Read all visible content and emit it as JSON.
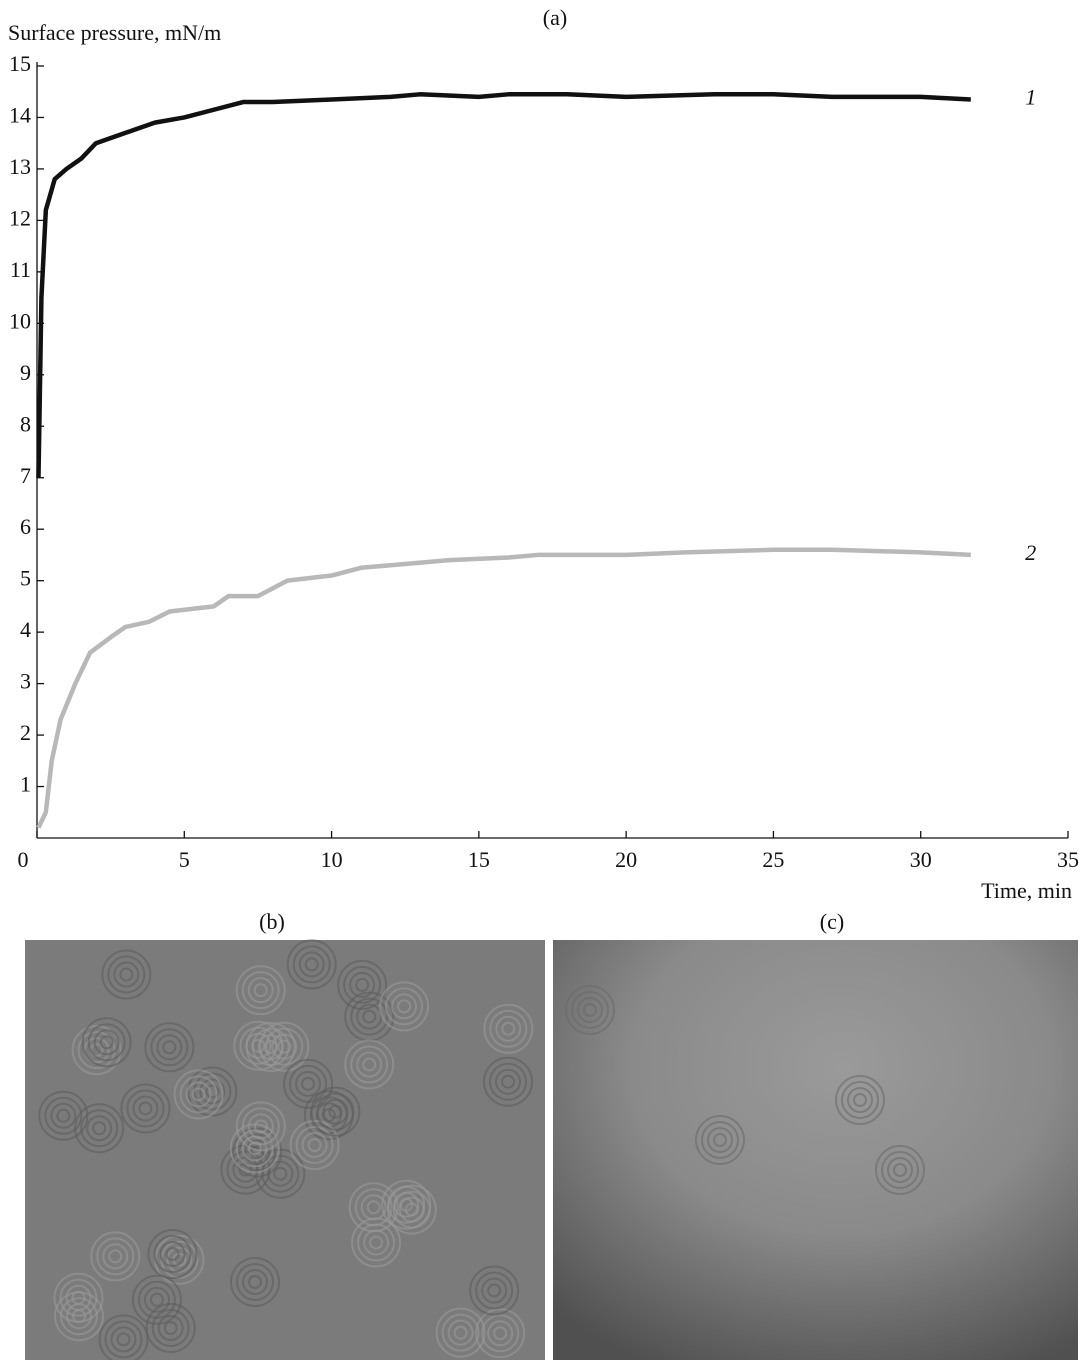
{
  "chart_data": {
    "type": "line",
    "title": "(a)",
    "y_label": "Surface pressure, mN/m",
    "x_label": "Time, min",
    "xlim": [
      0,
      35
    ],
    "xticks": [
      0,
      5,
      10,
      15,
      20,
      25,
      30,
      35
    ],
    "ylim": [
      0,
      15
    ],
    "yticks": [
      1,
      2,
      3,
      4,
      5,
      6,
      7,
      8,
      9,
      10,
      11,
      12,
      13,
      14,
      15
    ],
    "series": [
      {
        "name": "1",
        "color": "#111111",
        "x": [
          0.05,
          0.15,
          0.3,
          0.6,
          1,
          1.5,
          2,
          3,
          4,
          5,
          6,
          7,
          8,
          10,
          12,
          13,
          15,
          16,
          18,
          20,
          23,
          25,
          27,
          30,
          31.7
        ],
        "values": [
          7,
          10.5,
          12.2,
          12.8,
          13.0,
          13.2,
          13.5,
          13.7,
          13.9,
          14.0,
          14.15,
          14.3,
          14.3,
          14.35,
          14.4,
          14.45,
          14.4,
          14.45,
          14.45,
          14.4,
          14.45,
          14.45,
          14.4,
          14.4,
          14.35
        ]
      },
      {
        "name": "2",
        "color": "#b8b8b8",
        "x": [
          0.05,
          0.3,
          0.5,
          0.8,
          1.3,
          1.8,
          2.5,
          3,
          3.8,
          4.5,
          6,
          6.5,
          7.5,
          8.5,
          10,
          11,
          12,
          14,
          16,
          17,
          20,
          22,
          25,
          27,
          30,
          31.7
        ],
        "values": [
          0.2,
          0.5,
          1.5,
          2.3,
          3.0,
          3.6,
          3.9,
          4.1,
          4.2,
          4.4,
          4.5,
          4.7,
          4.7,
          5.0,
          5.1,
          5.25,
          5.3,
          5.4,
          5.45,
          5.5,
          5.5,
          5.55,
          5.6,
          5.6,
          5.55,
          5.5
        ]
      }
    ]
  },
  "panels": [
    {
      "label": "(b)"
    },
    {
      "label": "(c)"
    }
  ]
}
